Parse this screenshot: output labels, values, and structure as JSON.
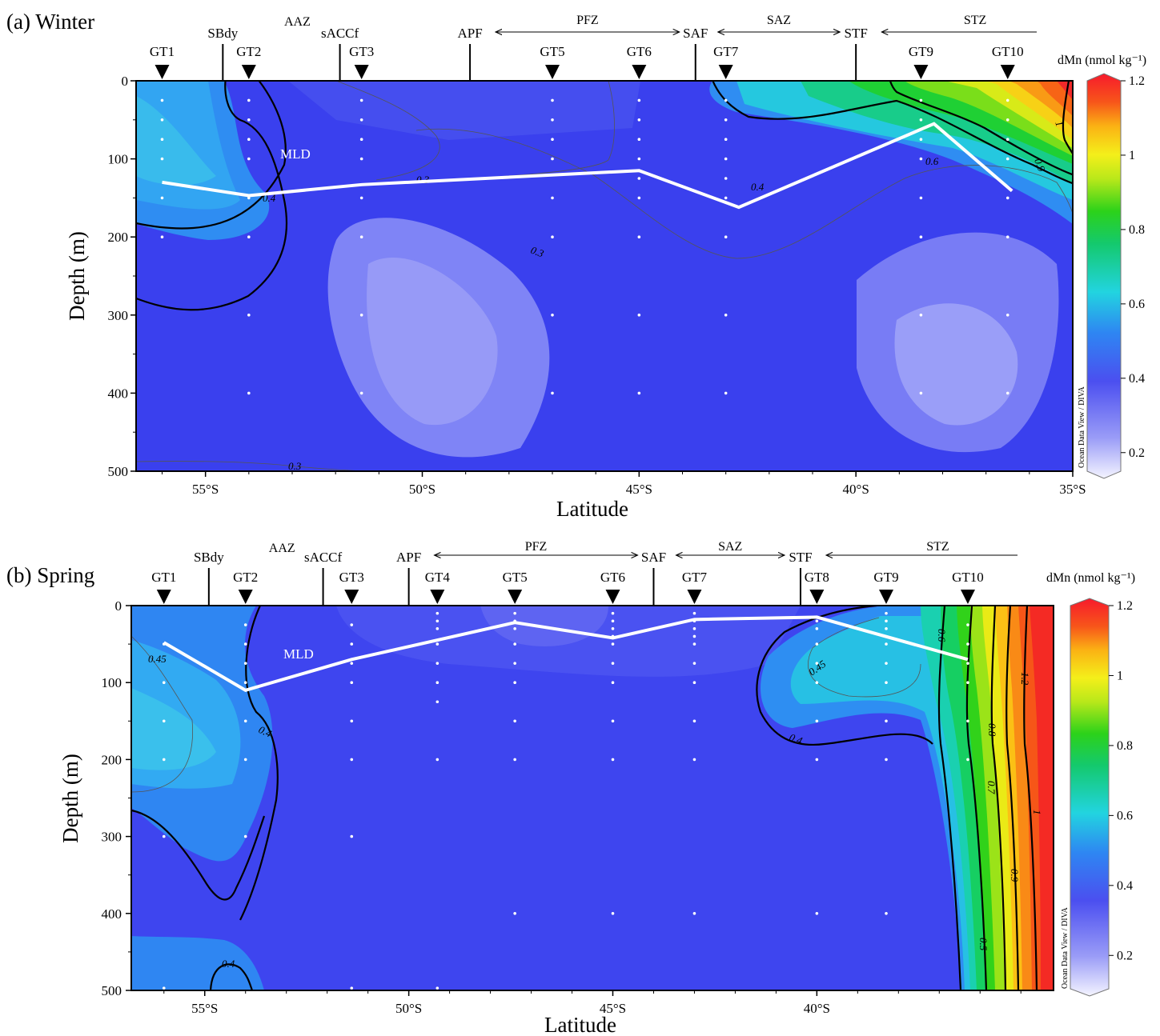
{
  "panels": [
    {
      "id": "winter",
      "title": "(a) Winter",
      "stations": [
        "GT1",
        "GT2",
        "GT3",
        "GT5",
        "GT6",
        "GT7",
        "GT9",
        "GT10"
      ],
      "fronts": [
        "SBdy",
        "sACCf",
        "APF",
        "SAF",
        "STF"
      ],
      "zones": [
        "AAZ",
        "PFZ",
        "SAZ",
        "STZ"
      ],
      "mld_label": "MLD",
      "xlabel": "Latitude",
      "ylabel": "Depth (m)",
      "contour_labels": [
        "1",
        "0.9",
        "0.6",
        "0.4",
        "0.4",
        "0.3",
        "0.3",
        "0.3"
      ]
    },
    {
      "id": "spring",
      "title": "(b) Spring",
      "stations": [
        "GT1",
        "GT2",
        "GT3",
        "GT4",
        "GT5",
        "GT6",
        "GT7",
        "GT8",
        "GT9",
        "GT10"
      ],
      "fronts": [
        "SBdy",
        "sACCf",
        "APF",
        "SAF",
        "STF"
      ],
      "zones": [
        "AAZ",
        "PFZ",
        "SAZ",
        "STZ"
      ],
      "mld_label": "MLD",
      "xlabel": "Latitude",
      "ylabel": "Depth (m)",
      "contour_labels": [
        "0.45",
        "0.4",
        "0.4",
        "0.45",
        "0.4",
        "0.6",
        "0.8",
        "0.7",
        "1.2",
        "1",
        "0.9",
        "0.5"
      ]
    }
  ],
  "colorbar": {
    "title": "dMn (nmol kg⁻¹)",
    "ticks": [
      "1.2",
      "1",
      "0.8",
      "0.6",
      "0.4",
      "0.2"
    ],
    "credit": "Ocean Data View / DIVA"
  },
  "chart_data": [
    {
      "type": "heatmap",
      "title": "(a) Winter",
      "xlabel": "Latitude",
      "ylabel": "Depth (m)",
      "xlim": [
        -56.6,
        -35.0
      ],
      "ylim": [
        500,
        0
      ],
      "xticks": [
        "55°S",
        "50°S",
        "45°S",
        "40°S",
        "35°S"
      ],
      "yticks": [
        "0",
        "100",
        "200",
        "300",
        "400",
        "500"
      ],
      "colorbar_label": "dMn (nmol kg⁻¹)",
      "colorbar_range": [
        0.15,
        1.2
      ],
      "colorbar_ticks": [
        0.2,
        0.4,
        0.6,
        0.8,
        1.0,
        1.2
      ],
      "stations": [
        {
          "name": "GT1",
          "lat": -56.0
        },
        {
          "name": "GT2",
          "lat": -54.0
        },
        {
          "name": "GT3",
          "lat": -51.4
        },
        {
          "name": "GT5",
          "lat": -47.0
        },
        {
          "name": "GT6",
          "lat": -45.0
        },
        {
          "name": "GT7",
          "lat": -43.0
        },
        {
          "name": "GT9",
          "lat": -38.5
        },
        {
          "name": "GT10",
          "lat": -36.5
        }
      ],
      "fronts": [
        {
          "name": "SBdy",
          "lat": -54.6
        },
        {
          "name": "sACCf",
          "lat": -51.9
        },
        {
          "name": "APF",
          "lat": -48.9
        },
        {
          "name": "SAF",
          "lat": -43.7
        },
        {
          "name": "STF",
          "lat": -40.0
        }
      ],
      "zones": [
        "AAZ",
        "PFZ",
        "SAZ",
        "STZ"
      ],
      "sample_depths": [
        {
          "lat": -56.0,
          "depths": [
            25,
            50,
            75,
            100,
            150,
            200
          ]
        },
        {
          "lat": -54.0,
          "depths": [
            25,
            50,
            75,
            100,
            150,
            200,
            300,
            400
          ]
        },
        {
          "lat": -51.4,
          "depths": [
            25,
            50,
            75,
            100,
            150,
            200,
            300,
            400
          ]
        },
        {
          "lat": -47.0,
          "depths": [
            25,
            50,
            75,
            100,
            150,
            200,
            300,
            400
          ]
        },
        {
          "lat": -45.0,
          "depths": [
            25,
            50,
            75,
            100,
            125,
            150,
            200,
            300,
            400
          ]
        },
        {
          "lat": -43.0,
          "depths": [
            25,
            50,
            75,
            100,
            125,
            150,
            200,
            300,
            400
          ]
        },
        {
          "lat": -38.5,
          "depths": [
            25,
            50,
            75,
            100,
            150,
            200,
            300,
            400
          ]
        },
        {
          "lat": -36.5,
          "depths": [
            25,
            50,
            75,
            100,
            150,
            200,
            300,
            400
          ]
        }
      ],
      "mld": {
        "label": "MLD",
        "lat": [
          -56.0,
          -54.0,
          -51.4,
          -45.0,
          -42.7,
          -38.2,
          -36.4
        ],
        "depth": [
          130,
          147,
          133,
          115,
          162,
          55,
          141
        ]
      },
      "contour_levels_labeled": [
        0.3,
        0.4,
        0.6,
        0.9,
        1.0
      ]
    },
    {
      "type": "heatmap",
      "title": "(b) Spring",
      "xlabel": "Latitude",
      "ylabel": "Depth (m)",
      "xlim": [
        -56.8,
        -34.2
      ],
      "ylim": [
        500,
        0
      ],
      "xticks": [
        "55°S",
        "50°S",
        "45°S",
        "40°S"
      ],
      "yticks": [
        "0",
        "100",
        "200",
        "300",
        "400",
        "500"
      ],
      "colorbar_label": "dMn (nmol kg⁻¹)",
      "colorbar_range": [
        0.1,
        1.2
      ],
      "colorbar_ticks": [
        0.2,
        0.4,
        0.6,
        0.8,
        1.0,
        1.2
      ],
      "stations": [
        {
          "name": "GT1",
          "lat": -56.0
        },
        {
          "name": "GT2",
          "lat": -54.0
        },
        {
          "name": "GT3",
          "lat": -51.4
        },
        {
          "name": "GT4",
          "lat": -49.3
        },
        {
          "name": "GT5",
          "lat": -47.4
        },
        {
          "name": "GT6",
          "lat": -45.0
        },
        {
          "name": "GT7",
          "lat": -43.0
        },
        {
          "name": "GT8",
          "lat": -40.0
        },
        {
          "name": "GT9",
          "lat": -38.3
        },
        {
          "name": "GT10",
          "lat": -36.3
        }
      ],
      "fronts": [
        {
          "name": "SBdy",
          "lat": -54.9
        },
        {
          "name": "sACCf",
          "lat": -52.1
        },
        {
          "name": "APF",
          "lat": -50.0
        },
        {
          "name": "SAF",
          "lat": -44.0
        },
        {
          "name": "STF",
          "lat": -40.4
        }
      ],
      "zones": [
        "AAZ",
        "PFZ",
        "SAZ",
        "STZ"
      ],
      "sample_depths": [
        {
          "lat": -56.0,
          "depths": [
            50,
            100,
            150,
            200,
            300,
            500
          ]
        },
        {
          "lat": -54.0,
          "depths": [
            25,
            50,
            75,
            100,
            150,
            200,
            300
          ]
        },
        {
          "lat": -51.4,
          "depths": [
            25,
            50,
            75,
            100,
            150,
            200,
            300,
            500
          ]
        },
        {
          "lat": -49.3,
          "depths": [
            10,
            20,
            30,
            50,
            75,
            100,
            125,
            200,
            500
          ]
        },
        {
          "lat": -47.4,
          "depths": [
            10,
            20,
            30,
            50,
            75,
            100,
            150,
            200,
            400
          ]
        },
        {
          "lat": -45.0,
          "depths": [
            10,
            20,
            30,
            40,
            50,
            75,
            100,
            150,
            200,
            400
          ]
        },
        {
          "lat": -43.0,
          "depths": [
            10,
            20,
            30,
            40,
            50,
            75,
            100,
            150,
            200,
            400
          ]
        },
        {
          "lat": -40.0,
          "depths": [
            20,
            30,
            50,
            75,
            100,
            150,
            200,
            400
          ]
        },
        {
          "lat": -38.3,
          "depths": [
            10,
            20,
            30,
            50,
            75,
            100,
            150,
            200,
            400
          ]
        },
        {
          "lat": -36.3,
          "depths": [
            25,
            50,
            75,
            100,
            150,
            200
          ]
        }
      ],
      "mld": {
        "label": "MLD",
        "lat": [
          -56.0,
          -54.0,
          -51.4,
          -47.4,
          -45.0,
          -43.0,
          -40.0,
          -36.3
        ],
        "depth": [
          48,
          110,
          70,
          22,
          42,
          18,
          15,
          70
        ]
      },
      "contour_levels_labeled": [
        0.4,
        0.45,
        0.5,
        0.6,
        0.7,
        0.8,
        0.9,
        1.0,
        1.2
      ]
    }
  ]
}
